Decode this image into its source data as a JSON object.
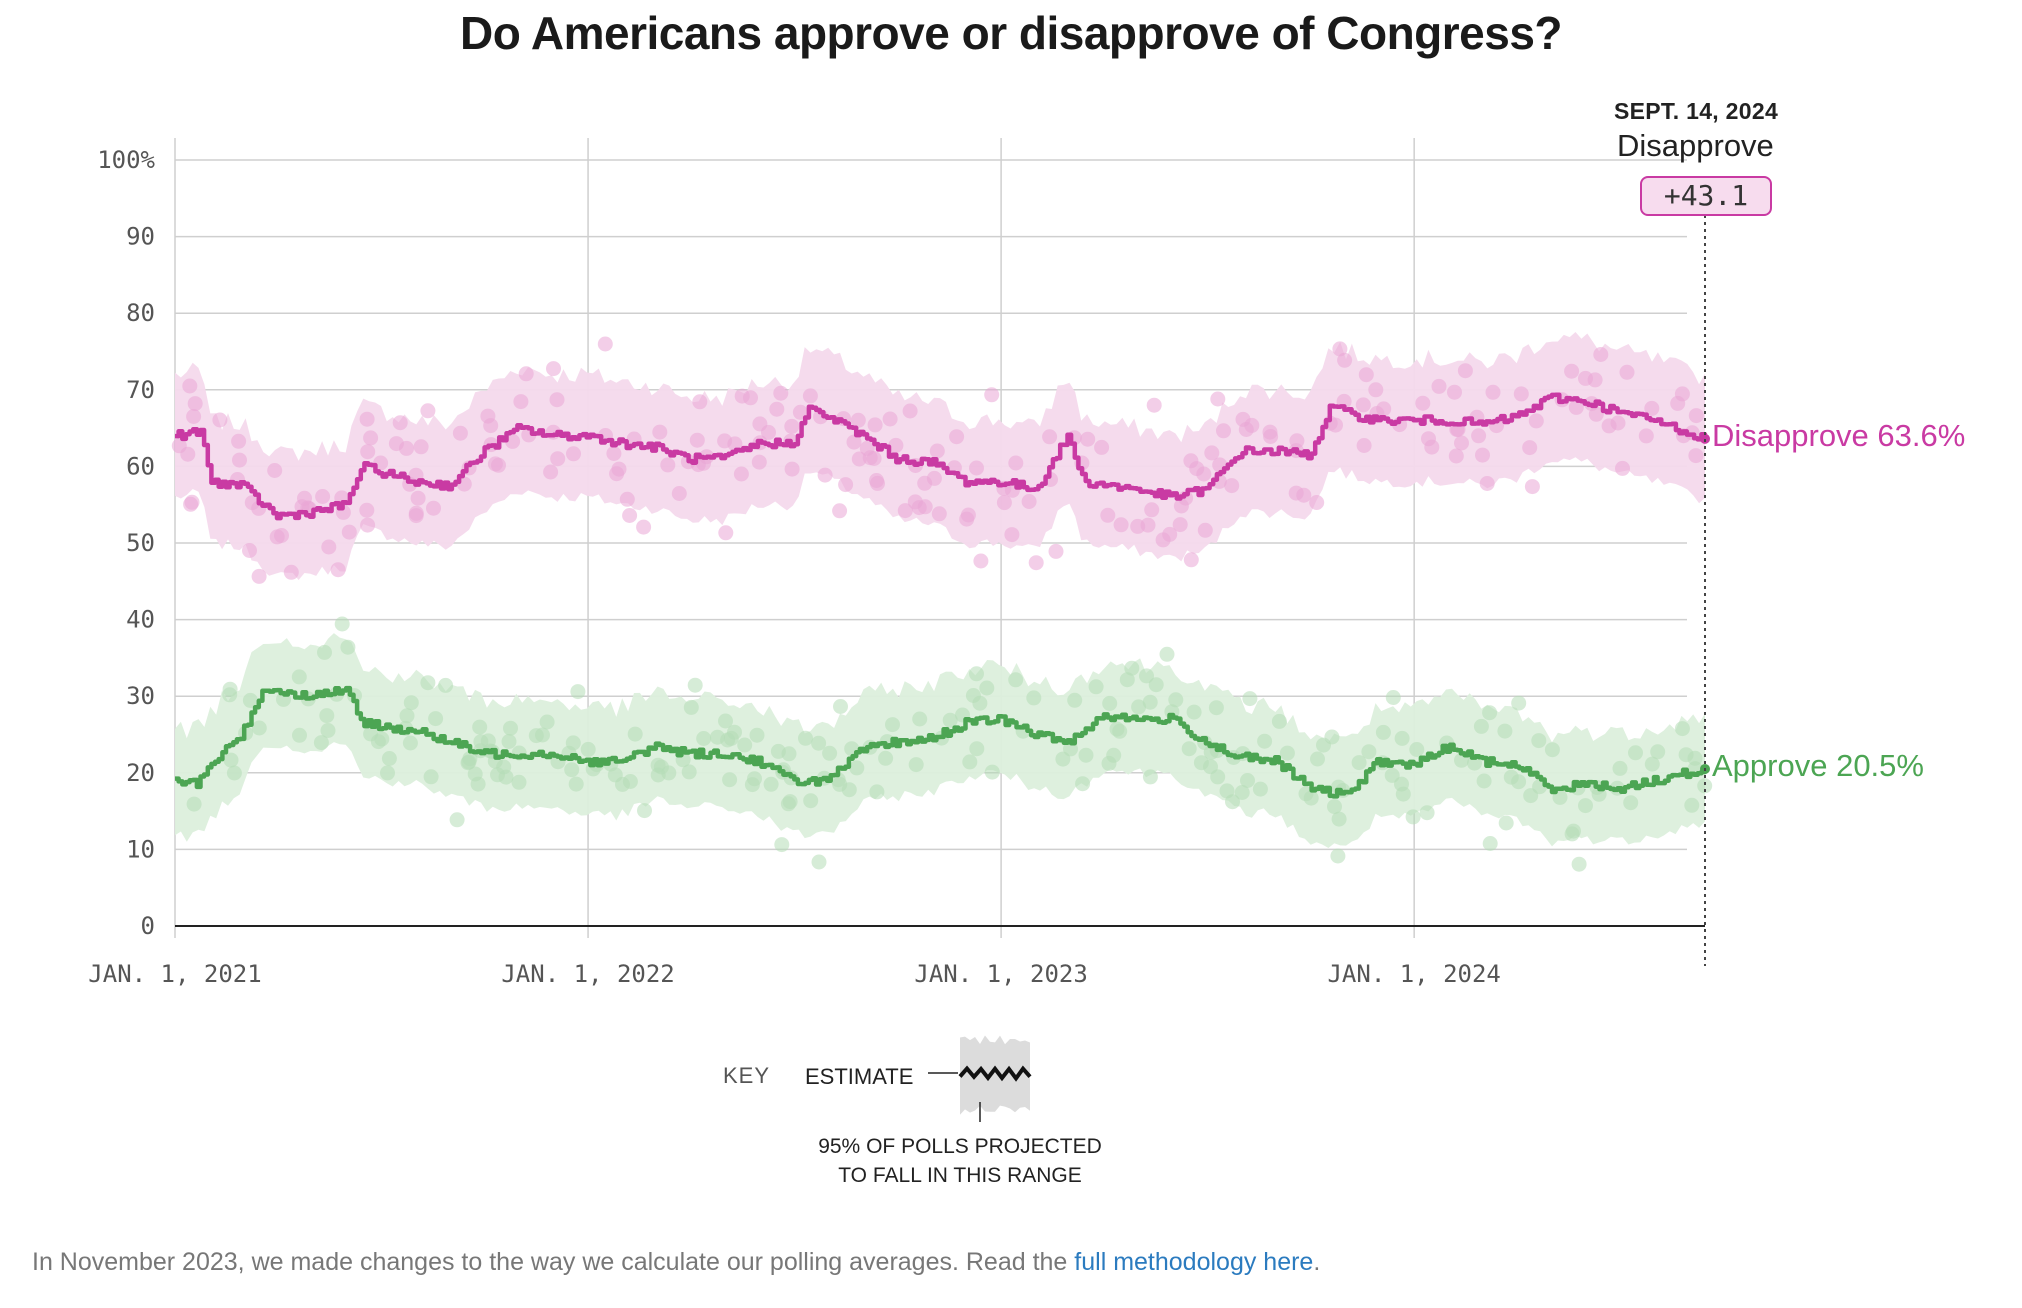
{
  "title": "Do Americans approve or disapprove of Congress?",
  "hover": {
    "date": "SEPT. 14, 2024",
    "leader": "Disapprove",
    "margin": "+43.1"
  },
  "end_labels": {
    "disapprove": "Disapprove 63.6%",
    "approve": "Approve 20.5%"
  },
  "key": {
    "label": "KEY",
    "estimate": "ESTIMATE",
    "range_line1": "95% OF POLLS PROJECTED",
    "range_line2": "TO FALL IN THIS RANGE"
  },
  "note": {
    "text": "In November 2023, we made changes to the way we calculate our polling averages. Read the ",
    "link": "full methodology here",
    "end": "."
  },
  "colors": {
    "disapprove": "#c93aa3",
    "disapprove_band": "#f4d9ec",
    "disapprove_dot": "#e9a6d6",
    "approve": "#4ca553",
    "approve_band": "#dcefdc",
    "approve_dot": "#b5dcb6",
    "grid": "#cfcfcf"
  },
  "chart_data": {
    "type": "line",
    "title": "Do Americans approve or disapprove of Congress?",
    "ylim": [
      0,
      100
    ],
    "yticks": [
      0,
      10,
      20,
      30,
      40,
      50,
      60,
      70,
      80,
      90,
      100
    ],
    "ytick_labels": [
      "0",
      "10",
      "20",
      "30",
      "40",
      "50",
      "60",
      "70",
      "80",
      "90",
      "100%"
    ],
    "xlim": [
      "2021-01-01",
      "2024-09-14"
    ],
    "xticks": [
      "2021-01-01",
      "2022-01-01",
      "2023-01-01",
      "2024-01-01"
    ],
    "xtick_labels": [
      "JAN. 1, 2021",
      "JAN. 1, 2022",
      "JAN. 1, 2023",
      "JAN. 1, 2024"
    ],
    "grid": true,
    "series": [
      {
        "name": "Disapprove",
        "band_halfwidth": 8,
        "points": [
          [
            "2021-01-01",
            64
          ],
          [
            "2021-01-25",
            64.5
          ],
          [
            "2021-02-01",
            58
          ],
          [
            "2021-03-01",
            57.5
          ],
          [
            "2021-04-01",
            53.5
          ],
          [
            "2021-05-01",
            54
          ],
          [
            "2021-06-01",
            55
          ],
          [
            "2021-06-15",
            60
          ],
          [
            "2021-08-01",
            58
          ],
          [
            "2021-09-01",
            57.5
          ],
          [
            "2021-10-01",
            62
          ],
          [
            "2021-11-01",
            65
          ],
          [
            "2021-12-01",
            64
          ],
          [
            "2022-01-01",
            64
          ],
          [
            "2022-02-01",
            63
          ],
          [
            "2022-03-01",
            62.5
          ],
          [
            "2022-04-01",
            61
          ],
          [
            "2022-05-01",
            61
          ],
          [
            "2022-06-01",
            63
          ],
          [
            "2022-07-01",
            63
          ],
          [
            "2022-07-15",
            67.5
          ],
          [
            "2022-08-01",
            66.5
          ],
          [
            "2022-09-01",
            64
          ],
          [
            "2022-10-01",
            61
          ],
          [
            "2022-11-01",
            60.5
          ],
          [
            "2022-12-01",
            58
          ],
          [
            "2023-01-01",
            58
          ],
          [
            "2023-02-01",
            57
          ],
          [
            "2023-03-01",
            64
          ],
          [
            "2023-03-15",
            58
          ],
          [
            "2023-05-01",
            57
          ],
          [
            "2023-06-01",
            56
          ],
          [
            "2023-07-01",
            57
          ],
          [
            "2023-08-01",
            62
          ],
          [
            "2023-09-01",
            62
          ],
          [
            "2023-10-01",
            61.5
          ],
          [
            "2023-10-20",
            68
          ],
          [
            "2023-11-01",
            67
          ],
          [
            "2023-12-01",
            66
          ],
          [
            "2024-01-01",
            66
          ],
          [
            "2024-02-01",
            66
          ],
          [
            "2024-03-01",
            65.5
          ],
          [
            "2024-04-01",
            66.5
          ],
          [
            "2024-05-01",
            69
          ],
          [
            "2024-06-01",
            68.5
          ],
          [
            "2024-07-01",
            67
          ],
          [
            "2024-08-01",
            66
          ],
          [
            "2024-09-14",
            63.6
          ]
        ]
      },
      {
        "name": "Approve",
        "band_halfwidth": 7,
        "points": [
          [
            "2021-01-01",
            19
          ],
          [
            "2021-01-20",
            18.5
          ],
          [
            "2021-02-01",
            21
          ],
          [
            "2021-03-01",
            25
          ],
          [
            "2021-03-20",
            31
          ],
          [
            "2021-05-01",
            30
          ],
          [
            "2021-06-01",
            31
          ],
          [
            "2021-06-15",
            26.5
          ],
          [
            "2021-08-01",
            25.5
          ],
          [
            "2021-09-01",
            24
          ],
          [
            "2021-10-01",
            22.5
          ],
          [
            "2021-11-01",
            22.5
          ],
          [
            "2021-12-01",
            22.5
          ],
          [
            "2022-01-01",
            21.5
          ],
          [
            "2022-02-01",
            21.5
          ],
          [
            "2022-03-01",
            23.5
          ],
          [
            "2022-04-01",
            22.5
          ],
          [
            "2022-05-01",
            22.5
          ],
          [
            "2022-06-01",
            21.5
          ],
          [
            "2022-07-01",
            19
          ],
          [
            "2022-08-01",
            19
          ],
          [
            "2022-09-01",
            23
          ],
          [
            "2022-10-01",
            24
          ],
          [
            "2022-11-01",
            24.5
          ],
          [
            "2022-12-01",
            26.5
          ],
          [
            "2023-01-01",
            27
          ],
          [
            "2023-02-01",
            25
          ],
          [
            "2023-03-01",
            24
          ],
          [
            "2023-04-01",
            27.5
          ],
          [
            "2023-05-01",
            27
          ],
          [
            "2023-06-01",
            27
          ],
          [
            "2023-07-01",
            24
          ],
          [
            "2023-08-01",
            22
          ],
          [
            "2023-09-01",
            21.5
          ],
          [
            "2023-10-01",
            18
          ],
          [
            "2023-11-01",
            17
          ],
          [
            "2023-12-01",
            21.5
          ],
          [
            "2024-01-01",
            21
          ],
          [
            "2024-02-01",
            23.5
          ],
          [
            "2024-03-01",
            21.5
          ],
          [
            "2024-04-01",
            21
          ],
          [
            "2024-05-01",
            18
          ],
          [
            "2024-06-01",
            18.5
          ],
          [
            "2024-07-01",
            18
          ],
          [
            "2024-08-01",
            19
          ],
          [
            "2024-09-14",
            20.5
          ]
        ]
      }
    ],
    "annotations": [
      {
        "date": "2024-09-14",
        "text": "SEPT. 14, 2024"
      },
      {
        "leader": "Disapprove",
        "margin": "+43.1"
      }
    ]
  }
}
